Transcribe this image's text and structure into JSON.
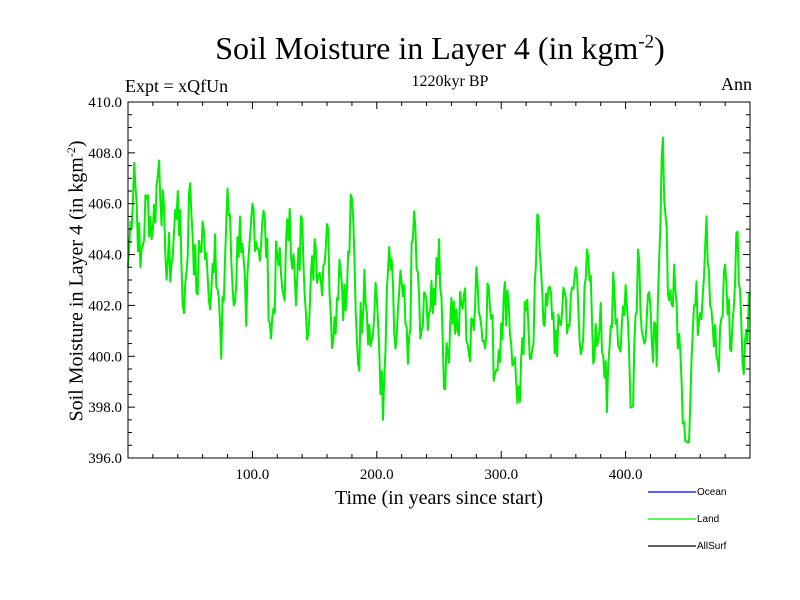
{
  "chart_data": {
    "type": "line",
    "title_main": "Soil Moisture in Layer 4 (in kgm",
    "title_sup": "-2",
    "title_end": ")",
    "subtitle": "1220kyr BP",
    "experiment": "Expt = xQfUn",
    "season": "Ann",
    "xlabel": "Time (in years since start)",
    "ylabel_main": "Soil Moisture in Layer 4 (in kgm",
    "ylabel_sup": "-2",
    "ylabel_end": ")",
    "xlim": [
      0,
      500
    ],
    "ylim": [
      396.0,
      410.0
    ],
    "xticks": [
      100,
      200,
      300,
      400
    ],
    "xtick_labels": [
      "100.0",
      "200.0",
      "300.0",
      "400.0"
    ],
    "yticks": [
      396,
      398,
      400,
      402,
      404,
      406,
      408,
      410
    ],
    "ytick_labels": [
      "396.0",
      "398.0",
      "400.0",
      "402.0",
      "404.0",
      "406.0",
      "408.0",
      "410.0"
    ],
    "legend": [
      {
        "name": "Ocean",
        "color": "#0000ff"
      },
      {
        "name": "Land",
        "color": "#00ee00"
      },
      {
        "name": "AllSurf",
        "color": "#000000"
      }
    ],
    "series": [
      {
        "name": "Land",
        "color": "#00ee00",
        "x": [
          0,
          5,
          10,
          15,
          20,
          25,
          30,
          35,
          40,
          45,
          50,
          55,
          60,
          65,
          70,
          75,
          80,
          85,
          90,
          95,
          100,
          105,
          110,
          115,
          120,
          125,
          130,
          135,
          140,
          145,
          150,
          155,
          160,
          165,
          170,
          175,
          180,
          185,
          190,
          195,
          200,
          205,
          210,
          215,
          220,
          225,
          230,
          235,
          240,
          245,
          250,
          255,
          260,
          265,
          270,
          275,
          280,
          285,
          290,
          295,
          300,
          305,
          310,
          315,
          320,
          325,
          330,
          335,
          340,
          345,
          350,
          355,
          360,
          365,
          370,
          375,
          380,
          385,
          390,
          395,
          400,
          405,
          410,
          415,
          420,
          425,
          430,
          435,
          440,
          445,
          450,
          455,
          460,
          465,
          470,
          475,
          480,
          485,
          490,
          495,
          500
        ],
        "values": [
          403.5,
          407.6,
          403.5,
          406.2,
          405.0,
          407.7,
          404.0,
          403.6,
          406.5,
          401.7,
          406.8,
          402.5,
          405.3,
          402.2,
          404.8,
          399.9,
          406.6,
          402.0,
          405.5,
          401.2,
          406.0,
          404.2,
          405.4,
          400.7,
          404.0,
          402.4,
          405.8,
          402.0,
          405.4,
          400.9,
          404.6,
          403.0,
          405.2,
          400.6,
          403.8,
          401.8,
          406.2,
          399.7,
          403.4,
          400.4,
          402.3,
          397.5,
          404.3,
          400.3,
          402.9,
          399.7,
          405.7,
          400.7,
          402.2,
          401.7,
          404.6,
          398.7,
          402.3,
          401.0,
          402.4,
          399.8,
          403.5,
          400.6,
          402.7,
          399.3,
          401.3,
          402.6,
          399.7,
          398.2,
          401.8,
          400.3,
          405.5,
          401.2,
          402.5,
          400.0,
          402.7,
          401.2,
          403.5,
          400.3,
          403.9,
          399.9,
          402.1,
          397.8,
          403.3,
          400.3,
          402.8,
          398.0,
          404.2,
          400.5,
          401.9,
          399.6,
          408.6,
          402.2,
          402.6,
          399.0,
          396.6,
          402.0,
          401.7,
          405.5,
          401.2,
          399.4,
          403.6,
          400.2,
          404.9,
          399.3,
          402.5
        ]
      }
    ]
  }
}
